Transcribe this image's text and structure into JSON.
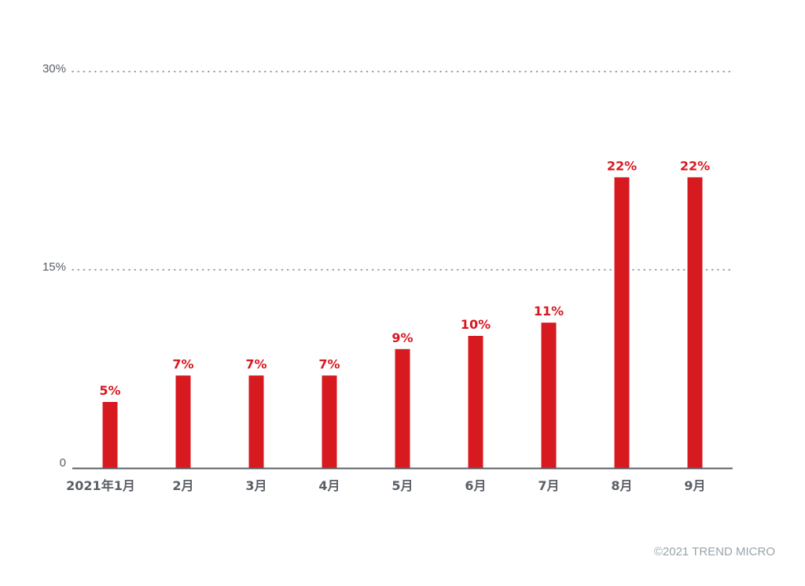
{
  "chart_data": {
    "type": "bar",
    "categories": [
      "2021年1月",
      "2月",
      "3月",
      "4月",
      "5月",
      "6月",
      "7月",
      "8月",
      "9月"
    ],
    "values": [
      5,
      7,
      7,
      7,
      9,
      10,
      11,
      22,
      22
    ],
    "data_labels": [
      "5%",
      "7%",
      "7%",
      "7%",
      "9%",
      "10%",
      "11%",
      "22%",
      "22%"
    ],
    "yticks": [
      0,
      15,
      30
    ],
    "ytick_labels": [
      "0",
      "15%",
      "30%"
    ],
    "ylim": [
      0,
      30
    ],
    "grid": "dotted",
    "bar_color": "#d71920",
    "axis_color": "#5a5f66"
  },
  "copyright": "©2021 TREND MICRO"
}
